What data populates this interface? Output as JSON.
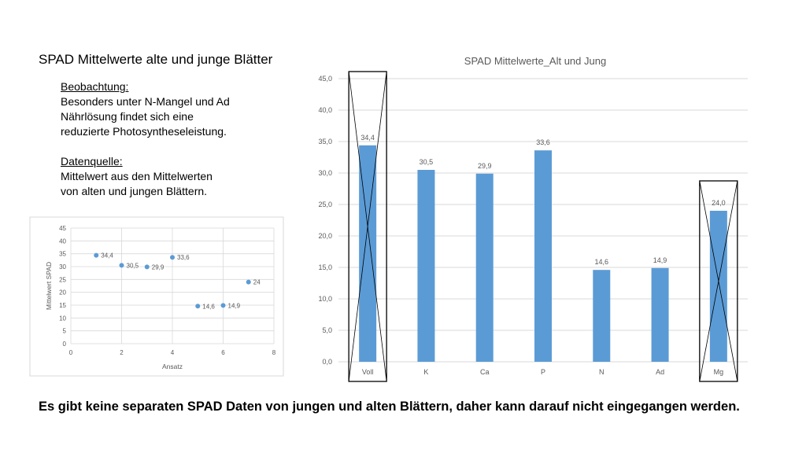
{
  "slide": {
    "title": "SPAD Mittelwerte alte und junge Blätter",
    "observation_heading": "Beobachtung:",
    "observation_lines": [
      "Besonders unter N-Mangel und Ad",
      "Nährlösung findet sich eine",
      "reduzierte Photosyntheseleistung."
    ],
    "source_heading": "Datenquelle:",
    "source_lines": [
      "Mittelwert aus den Mittelwerten",
      "von alten und jungen Blättern."
    ],
    "footer": "Es gibt keine separaten SPAD Daten von jungen und alten Blättern, daher kann darauf nicht eingegangen werden."
  },
  "colors": {
    "bar": "#5b9bd5",
    "grid": "#d9d9d9",
    "axis_text": "#595959",
    "box": "#000000"
  },
  "chart_data": [
    {
      "type": "bar",
      "title": "SPAD Mittelwerte_Alt und Jung",
      "categories": [
        "Voll",
        "K",
        "Ca",
        "P",
        "N",
        "Ad",
        "Mg"
      ],
      "values": [
        34.4,
        30.5,
        29.9,
        33.6,
        14.6,
        14.9,
        24.0
      ],
      "data_labels": [
        "34,4",
        "30,5",
        "29,9",
        "33,6",
        "14,6",
        "14,9",
        "24,0"
      ],
      "ylim": [
        0,
        45
      ],
      "yticks": [
        0,
        5,
        10,
        15,
        20,
        25,
        30,
        35,
        40,
        45
      ],
      "ytick_labels": [
        "0,0",
        "5,0",
        "10,0",
        "15,0",
        "20,0",
        "25,0",
        "30,0",
        "35,0",
        "40,0",
        "45,0"
      ],
      "grid": true,
      "crossed_out_categories": [
        "Voll",
        "Mg"
      ]
    },
    {
      "type": "scatter",
      "xlabel": "Ansatz",
      "ylabel": "Mittelwert SPAD",
      "x": [
        1,
        2,
        3,
        4,
        5,
        6,
        7
      ],
      "y": [
        34.4,
        30.5,
        29.9,
        33.6,
        14.6,
        14.9,
        24
      ],
      "data_labels": [
        "34,4",
        "30,5",
        "29,9",
        "33,6",
        "14,6",
        "14,9",
        "24"
      ],
      "xlim": [
        0,
        8
      ],
      "ylim": [
        0,
        45
      ],
      "xticks": [
        0,
        2,
        4,
        6,
        8
      ],
      "yticks": [
        0,
        5,
        10,
        15,
        20,
        25,
        30,
        35,
        40,
        45
      ],
      "grid": true
    }
  ]
}
